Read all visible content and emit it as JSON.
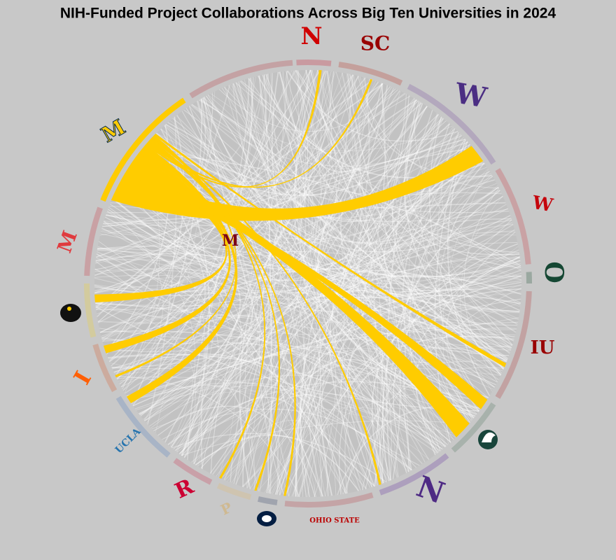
{
  "title": "NIH-Funded Project Collaborations Across Big Ten Universities in 2024",
  "logos": [
    {
      "label": "M",
      "color": "#7a0019"
    },
    {
      "label": "N",
      "color": "#d00000"
    },
    {
      "label": "SC",
      "color": "#990000"
    },
    {
      "label": "W",
      "color": "#4b2e83"
    },
    {
      "label": "W",
      "color": "#c5050c"
    },
    {
      "label": "O",
      "color": "#154733"
    },
    {
      "label": "IU",
      "color": "#990000"
    },
    {
      "label": "N",
      "color": "#4e2a84"
    },
    {
      "label": "OHIO STATE",
      "color": "#bb0000"
    },
    {
      "label": "P",
      "color": "#cfb991"
    },
    {
      "label": "R",
      "color": "#cc0033"
    },
    {
      "label": "UCLA",
      "color": "#2774ae"
    },
    {
      "label": "I",
      "color": "#ff5f05"
    },
    {
      "label": "M",
      "color": "#e03a3e"
    },
    {
      "label": "M",
      "color": "#ffcb05"
    }
  ]
}
